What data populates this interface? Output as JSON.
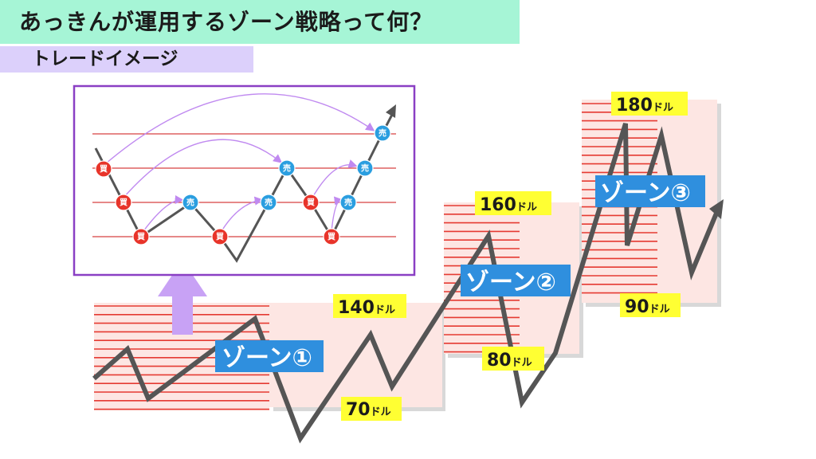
{
  "header": {
    "title": "あっきんが運用するゾーン戦略って何？",
    "subtitle": "トレードイメージ"
  },
  "zones": [
    {
      "label": "ゾーン①",
      "upper_price": "140",
      "lower_price": "70",
      "unit": "ドル"
    },
    {
      "label": "ゾーン②",
      "upper_price": "160",
      "lower_price": "80",
      "unit": "ドル"
    },
    {
      "label": "ゾーン③",
      "upper_price": "180",
      "lower_price": "90",
      "unit": "ドル"
    }
  ],
  "inset": {
    "buy_label": "買",
    "sell_label": "売",
    "colors": {
      "buy": "#e8342a",
      "sell": "#2a9ee0",
      "frame": "#8a3fc4",
      "arrow": "#c8a2f5"
    }
  },
  "colors": {
    "title_bg": "#a6f5d6",
    "subtitle_bg": "#dcd0fb",
    "zone_fill": "#fde6e3",
    "zone_line": "#e53a32",
    "zone_label_bg": "#2f8fde",
    "price_bg": "#ffff33",
    "path": "#555555"
  }
}
